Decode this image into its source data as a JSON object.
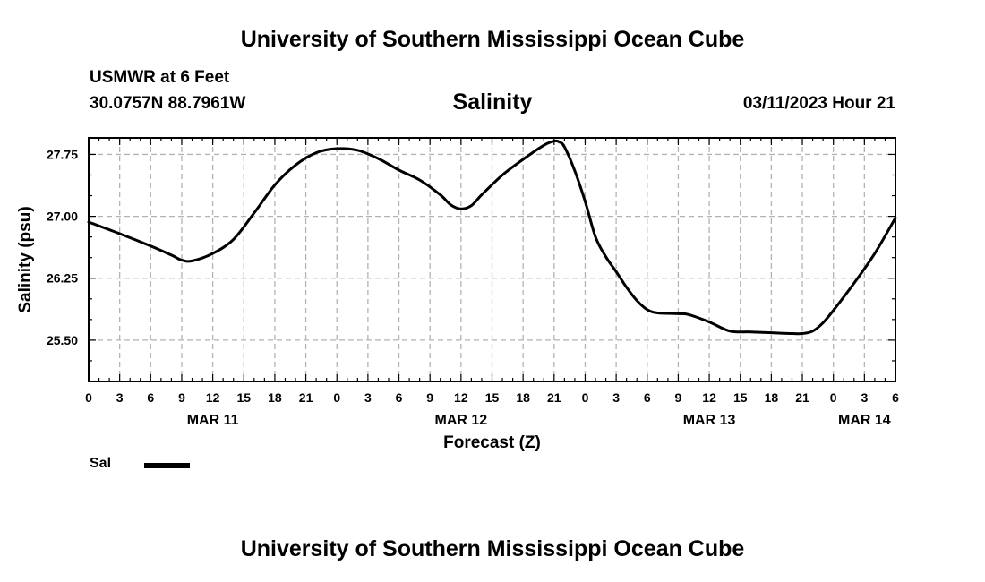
{
  "header": {
    "title": "University of Southern Mississippi Ocean Cube",
    "station": "USMWR at 6 Feet",
    "coords": "30.0757N  88.7961W",
    "variable": "Salinity",
    "datetime": "03/11/2023 Hour 21"
  },
  "footer": {
    "title": "University of Southern Mississippi Ocean Cube"
  },
  "chart_data": {
    "type": "line",
    "title": "Salinity",
    "xlabel": "Forecast (Z)",
    "ylabel": "Salinity (psu)",
    "x_unit": "hours since MAR 11 00Z",
    "xlim": [
      0,
      78
    ],
    "ylim": [
      25.0,
      27.95
    ],
    "grid": true,
    "x_ticks": [
      0,
      3,
      6,
      9,
      12,
      15,
      18,
      21,
      24,
      27,
      30,
      33,
      36,
      39,
      42,
      45,
      48,
      51,
      54,
      57,
      60,
      63,
      66,
      69,
      72,
      75,
      78
    ],
    "x_tick_labels": [
      "0",
      "3",
      "6",
      "9",
      "12",
      "15",
      "18",
      "21",
      "0",
      "3",
      "6",
      "9",
      "12",
      "15",
      "18",
      "21",
      "0",
      "3",
      "6",
      "9",
      "12",
      "15",
      "18",
      "21",
      "0",
      "3",
      "6"
    ],
    "date_labels": [
      {
        "x": 12,
        "label": "MAR 11"
      },
      {
        "x": 36,
        "label": "MAR 12"
      },
      {
        "x": 60,
        "label": "MAR 13"
      },
      {
        "x": 75,
        "label": "MAR 14"
      }
    ],
    "y_ticks": [
      25.5,
      26.25,
      27.0,
      27.75
    ],
    "y_tick_labels": [
      "25.50",
      "26.25",
      "27.00",
      "27.75"
    ],
    "y_minor_step": 0.25,
    "legend": [
      {
        "label": "Sal",
        "color": "#000000"
      }
    ],
    "series": [
      {
        "name": "Sal",
        "x": [
          0,
          3,
          6,
          8,
          9,
          10,
          12,
          14,
          16,
          18,
          20,
          22,
          24,
          26,
          28,
          30,
          32,
          34,
          35,
          36,
          37,
          38,
          40,
          42,
          44,
          45,
          45.5,
          46,
          47,
          48,
          49,
          50,
          51,
          52,
          53,
          54,
          55,
          57,
          58,
          60,
          62,
          64,
          66,
          68,
          69,
          70,
          71,
          72,
          74,
          76,
          78
        ],
        "y": [
          26.93,
          26.79,
          26.64,
          26.53,
          26.47,
          26.46,
          26.55,
          26.72,
          27.04,
          27.38,
          27.62,
          27.77,
          27.82,
          27.8,
          27.7,
          27.56,
          27.44,
          27.26,
          27.14,
          27.09,
          27.13,
          27.26,
          27.5,
          27.69,
          27.86,
          27.91,
          27.9,
          27.84,
          27.55,
          27.18,
          26.75,
          26.51,
          26.33,
          26.14,
          25.98,
          25.87,
          25.83,
          25.82,
          25.81,
          25.72,
          25.61,
          25.6,
          25.59,
          25.58,
          25.58,
          25.61,
          25.71,
          25.86,
          26.19,
          26.55,
          26.98
        ]
      }
    ]
  }
}
